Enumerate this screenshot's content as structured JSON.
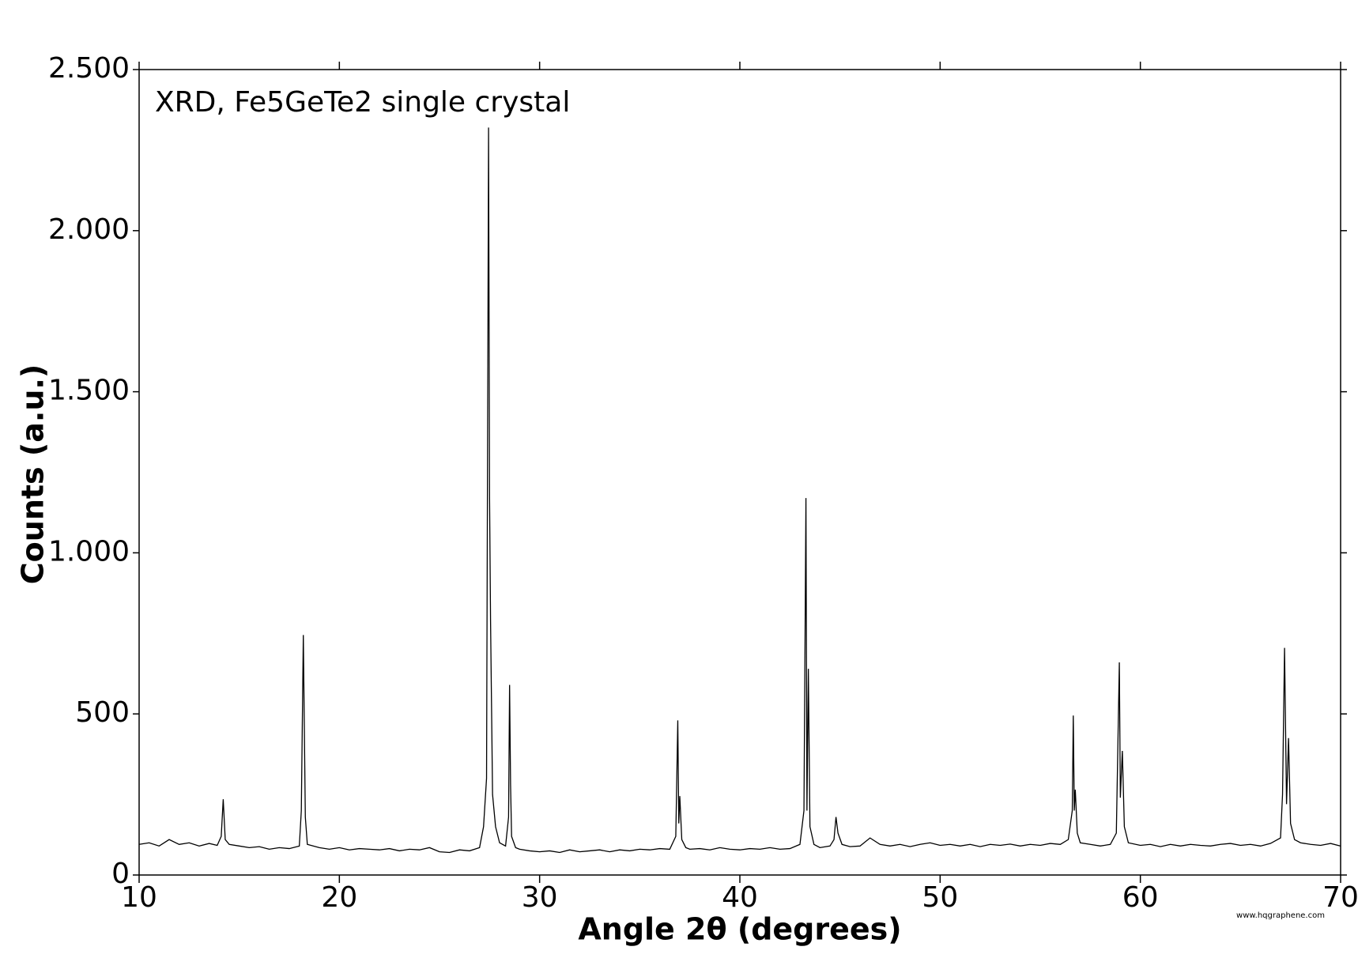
{
  "chart_data": {
    "type": "line",
    "annotation": "XRD, Fe5GeTe2 single crystal",
    "xlabel": "Angle 2θ (degrees)",
    "ylabel": "Counts (a.u.)",
    "watermark": "www.hqgraphene.com",
    "color": "#000000",
    "xlim": [
      10,
      70
    ],
    "xticks": [
      10,
      20,
      30,
      40,
      50,
      60,
      70
    ],
    "ylim": [
      0,
      2500
    ],
    "yticks": [
      0,
      500,
      {
        "value": 1000,
        "label": "1.000"
      },
      {
        "value": 1500,
        "label": "1.500"
      },
      {
        "value": 2000,
        "label": "2.000"
      },
      {
        "value": 2500,
        "label": "2.500"
      }
    ],
    "grid": false,
    "x": [
      10,
      10.5,
      11,
      11.5,
      12,
      12.5,
      13,
      13.5,
      13.9,
      14.1,
      14.2,
      14.3,
      14.5,
      15,
      15.5,
      16,
      16.5,
      17,
      17.5,
      18,
      18.1,
      18.2,
      18.3,
      18.4,
      19,
      19.5,
      20,
      20.5,
      21,
      21.5,
      22,
      22.5,
      23,
      23.5,
      24,
      24.5,
      25,
      25.5,
      26,
      26.5,
      27,
      27.2,
      27.35,
      27.45,
      27.5,
      27.55,
      27.65,
      27.8,
      28,
      28.3,
      28.45,
      28.5,
      28.55,
      28.6,
      28.8,
      29,
      29.5,
      30,
      30.5,
      31,
      31.5,
      32,
      32.5,
      33,
      33.5,
      34,
      34.5,
      35,
      35.5,
      36,
      36.5,
      36.8,
      36.9,
      36.95,
      37,
      37.1,
      37.3,
      37.5,
      38,
      38.5,
      39,
      39.5,
      40,
      40.5,
      41,
      41.5,
      42,
      42.5,
      43,
      43.2,
      43.3,
      43.35,
      43.42,
      43.5,
      43.7,
      44,
      44.5,
      44.7,
      44.8,
      44.9,
      45.1,
      45.5,
      46,
      46.5,
      47,
      47.5,
      48,
      48.5,
      49,
      49.5,
      50,
      50.5,
      51,
      51.5,
      52,
      52.5,
      53,
      53.5,
      54,
      54.5,
      55,
      55.5,
      56,
      56.4,
      56.6,
      56.65,
      56.7,
      56.75,
      56.85,
      57,
      57.5,
      58,
      58.5,
      58.8,
      58.95,
      59,
      59.1,
      59.2,
      59.4,
      60,
      60.5,
      61,
      61.5,
      62,
      62.5,
      63,
      63.5,
      64,
      64.5,
      65,
      65.5,
      66,
      66.5,
      67,
      67.1,
      67.2,
      67.3,
      67.4,
      67.5,
      67.7,
      68,
      68.5,
      69,
      69.5,
      70
    ],
    "values": [
      95,
      100,
      90,
      110,
      95,
      100,
      90,
      98,
      92,
      120,
      235,
      110,
      95,
      90,
      85,
      88,
      80,
      85,
      82,
      90,
      200,
      745,
      180,
      95,
      85,
      80,
      85,
      78,
      82,
      80,
      78,
      82,
      75,
      80,
      78,
      85,
      72,
      70,
      78,
      75,
      85,
      150,
      300,
      2320,
      1175,
      790,
      250,
      150,
      100,
      90,
      180,
      590,
      280,
      120,
      85,
      80,
      75,
      72,
      75,
      70,
      78,
      72,
      75,
      78,
      72,
      78,
      75,
      80,
      78,
      82,
      80,
      120,
      480,
      160,
      245,
      110,
      85,
      80,
      82,
      78,
      85,
      80,
      78,
      82,
      80,
      85,
      80,
      82,
      95,
      200,
      1170,
      200,
      640,
      150,
      95,
      85,
      90,
      110,
      180,
      130,
      95,
      88,
      90,
      115,
      95,
      90,
      95,
      88,
      95,
      100,
      92,
      95,
      90,
      95,
      88,
      95,
      92,
      96,
      90,
      95,
      92,
      98,
      95,
      110,
      200,
      495,
      200,
      265,
      130,
      100,
      95,
      90,
      95,
      130,
      660,
      240,
      385,
      150,
      100,
      92,
      95,
      88,
      95,
      90,
      95,
      92,
      90,
      95,
      98,
      92,
      95,
      90,
      98,
      115,
      250,
      705,
      220,
      425,
      160,
      110,
      100,
      95,
      92,
      98,
      90
    ]
  }
}
